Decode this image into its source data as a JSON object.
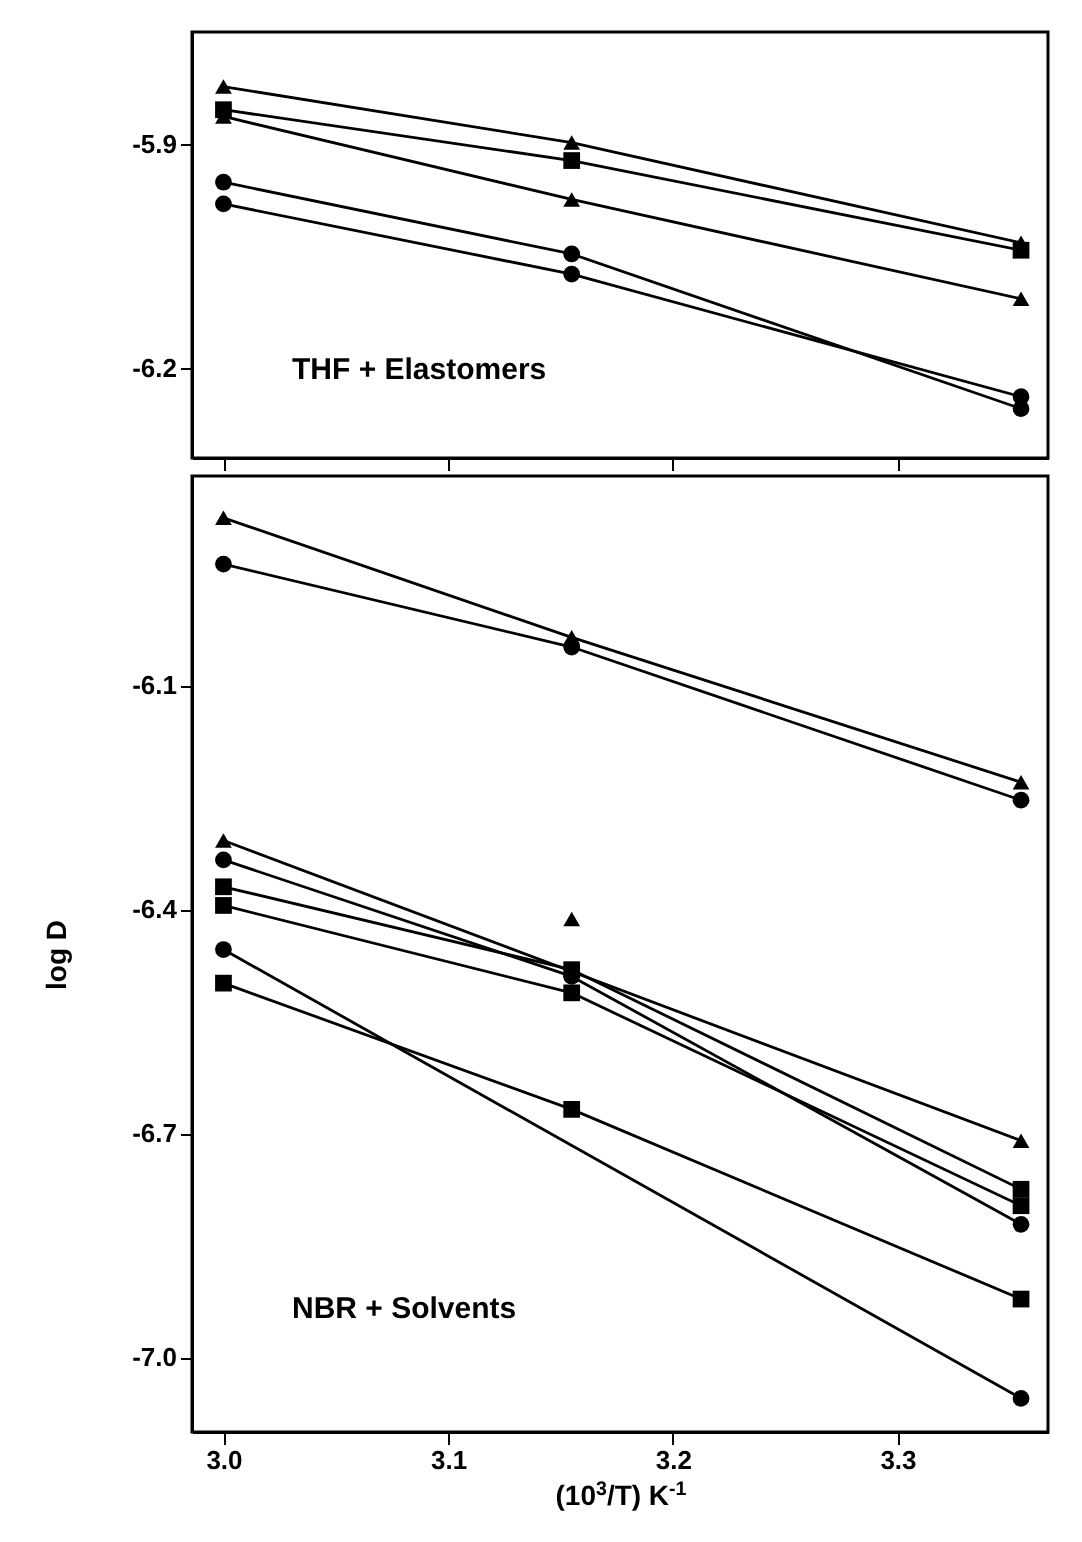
{
  "chart_data": [
    {
      "type": "line",
      "xlim": [
        2.986,
        3.367
      ],
      "ylim": [
        -6.32,
        -5.75
      ],
      "xticks": [
        3.0,
        3.1,
        3.2,
        3.3
      ],
      "yticks": [
        -5.9,
        -6.2
      ],
      "tick_labels": "y",
      "annotations": [
        "THF + Elastomers"
      ],
      "series": [
        {
          "type": "line",
          "marker": "triangle",
          "color": "#000000",
          "x": [
            3.0,
            3.155,
            3.355
          ],
          "values": [
            -5.823,
            -5.898,
            -6.032
          ]
        },
        {
          "type": "line",
          "marker": "square",
          "color": "#000000",
          "x": [
            3.0,
            3.155,
            3.355
          ],
          "values": [
            -5.854,
            -5.922,
            -6.042
          ]
        },
        {
          "type": "line",
          "marker": "triangle",
          "color": "#000000",
          "x": [
            3.0,
            3.155,
            3.355
          ],
          "values": [
            -5.863,
            -5.974,
            -6.107
          ]
        },
        {
          "type": "line",
          "marker": "circle",
          "color": "#000000",
          "x": [
            3.0,
            3.155,
            3.355
          ],
          "values": [
            -5.951,
            -6.047,
            -6.254
          ]
        },
        {
          "type": "line",
          "marker": "circle",
          "color": "#000000",
          "x": [
            3.0,
            3.155,
            3.355
          ],
          "values": [
            -5.98,
            -6.074,
            -6.238
          ]
        }
      ]
    },
    {
      "type": "line",
      "xlim": [
        2.986,
        3.367
      ],
      "ylim": [
        -7.1,
        -5.82
      ],
      "xticks": [
        {
          "value": 3.0,
          "label": "3.0"
        },
        3.1,
        3.2,
        3.3
      ],
      "yticks": [
        -6.1,
        -6.4,
        -6.7,
        {
          "value": -7.0,
          "label": "-7.0"
        }
      ],
      "xlabel": "(10$^{3}$/T) K$^{-1}$",
      "ylabel": "log D",
      "annotations": [
        "NBR + Solvents"
      ],
      "series": [
        {
          "type": "line",
          "marker": "triangle",
          "color": "#000000",
          "x": [
            3.0,
            3.155,
            3.355
          ],
          "values": [
            -5.876,
            -6.036,
            -6.23
          ]
        },
        {
          "type": "line",
          "marker": "circle",
          "color": "#000000",
          "x": [
            3.0,
            3.155,
            3.355
          ],
          "values": [
            -5.938,
            -6.049,
            -6.254
          ]
        },
        {
          "type": "line",
          "marker": "triangle",
          "color": "#000000",
          "x": [
            3.0,
            3.355
          ],
          "values": [
            -6.308,
            -6.71
          ]
        },
        {
          "type": "scatter",
          "marker": "triangle",
          "color": "#000000",
          "x": [
            3.155
          ],
          "values": [
            -6.413
          ]
        },
        {
          "type": "line",
          "marker": "circle",
          "color": "#000000",
          "x": [
            3.0,
            3.155,
            3.355
          ],
          "values": [
            -6.334,
            -6.49,
            -6.822
          ]
        },
        {
          "type": "line",
          "marker": "square",
          "color": "#000000",
          "x": [
            3.0,
            3.155,
            3.355
          ],
          "values": [
            -6.37,
            -6.481,
            -6.775
          ]
        },
        {
          "type": "line",
          "marker": "square",
          "color": "#000000",
          "x": [
            3.0,
            3.155,
            3.355
          ],
          "values": [
            -6.395,
            -6.512,
            -6.797
          ]
        },
        {
          "type": "line",
          "marker": "circle",
          "color": "#000000",
          "x": [
            3.0,
            3.355
          ],
          "values": [
            -6.454,
            -7.055
          ]
        },
        {
          "type": "line",
          "marker": "square",
          "color": "#000000",
          "x": [
            3.0,
            3.155,
            3.355
          ],
          "values": [
            -6.499,
            -6.668,
            -6.922
          ]
        }
      ]
    }
  ]
}
